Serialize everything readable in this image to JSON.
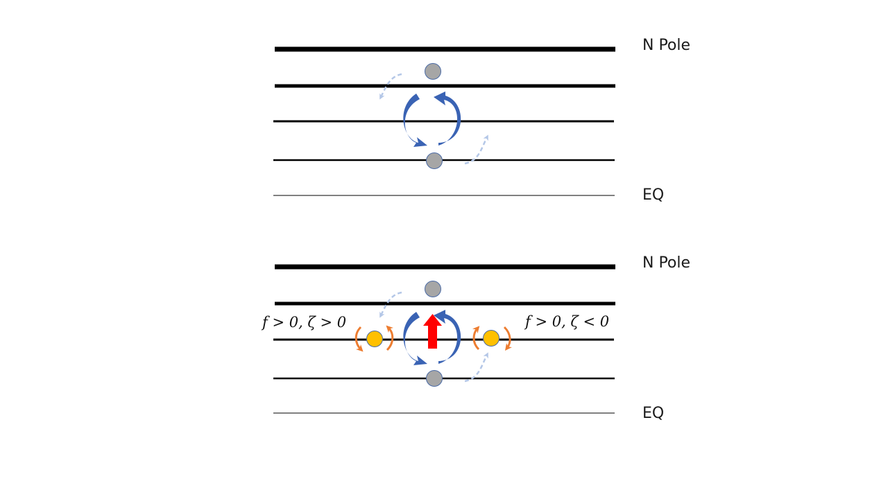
{
  "panels": [
    {
      "pole_label": "N Pole",
      "eq_label": "EQ"
    },
    {
      "pole_label": "N Pole",
      "eq_label": "EQ",
      "left_condition": "f > 0, ζ > 0",
      "right_condition": "f > 0, ζ < 0"
    }
  ],
  "colors": {
    "line": "#000000",
    "vortex": "#3a63b4",
    "dashed_arrow": "#b4c7e7",
    "gray_parcel": "#a6a6a6",
    "yellow_parcel": "#ffc000",
    "orange_arrow": "#ed7d31",
    "red_arrow": "#ff0000"
  }
}
